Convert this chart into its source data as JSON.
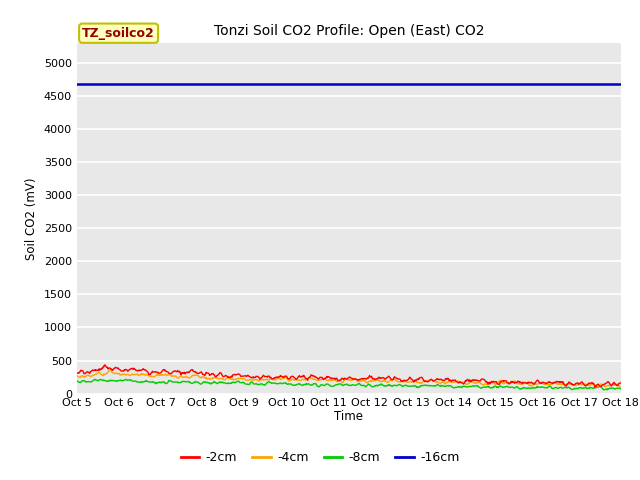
{
  "title": "Tonzi Soil CO2 Profile: Open (East) CO2",
  "ylabel": "Soil CO2 (mV)",
  "xlabel": "Time",
  "ylim": [
    0,
    5300
  ],
  "yticks": [
    0,
    500,
    1000,
    1500,
    2000,
    2500,
    3000,
    3500,
    4000,
    4500,
    5000
  ],
  "xtick_labels": [
    "Oct 5",
    "Oct 6",
    "Oct 7",
    "Oct 8",
    "Oct 9",
    "Oct 10",
    "Oct 11",
    "Oct 12",
    "Oct 13",
    "Oct 14",
    "Oct 15",
    "Oct 16",
    "Oct 17",
    "Oct 18"
  ],
  "bg_color": "#e8e8e8",
  "fig_bg_color": "#ffffff",
  "grid_color": "#ffffff",
  "series_colors": {
    "-2cm": "#ff0000",
    "-4cm": "#ffa500",
    "-8cm": "#00cc00",
    "-16cm": "#0000cc"
  },
  "legend_label": "TZ_soilco2",
  "legend_box_facecolor": "#ffffc0",
  "legend_box_edgecolor": "#c0c000",
  "legend_text_color": "#990000",
  "blue_line_value": 4680,
  "noise_seed": 42
}
